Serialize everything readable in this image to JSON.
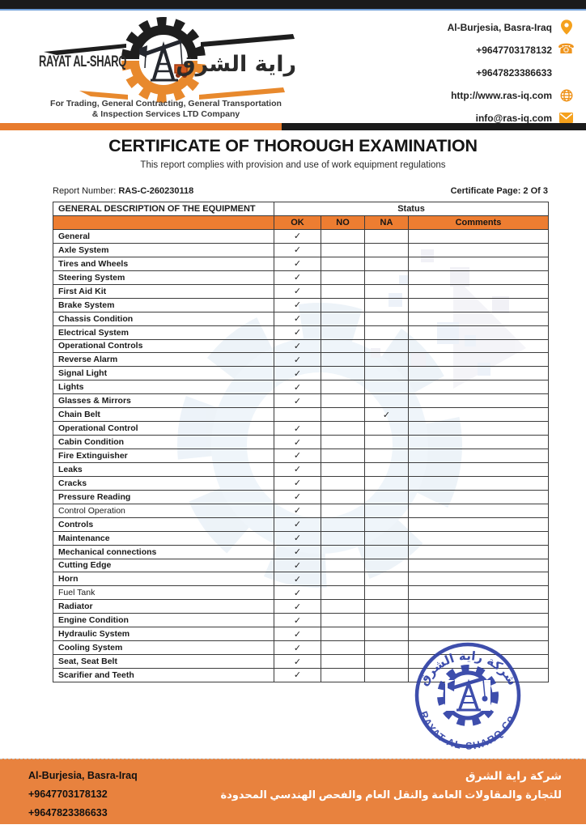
{
  "header": {
    "company_name_en": "RAYAT AL-SHARQ",
    "company_name_ar": "راية الشرق",
    "tagline_line1": "For Trading, General Contracting, General Transportation",
    "tagline_line2": "& Inspection Services LTD Company",
    "contact": {
      "address": "Al-Burjesia, Basra-Iraq",
      "phone1": "+9647703178132",
      "phone2": "+9647823386633",
      "website": "http://www.ras-iq.com",
      "email": "info@ras-iq.com"
    }
  },
  "title": "CERTIFICATE OF THOROUGH EXAMINATION",
  "subtitle": "This report complies with provision and use of work equipment regulations",
  "report": {
    "number_label": "Report Number: ",
    "number_value": "RAS-C-260230118",
    "page_label": "Certificate Page: 2 Of 3"
  },
  "table": {
    "col1_header": "GENERAL DESCRIPTION OF THE EQUIPMENT",
    "status_header": "Status",
    "status_columns": [
      "OK",
      "NO",
      "NA",
      "Comments"
    ],
    "check_glyph": "✓",
    "rows": [
      {
        "label": "General",
        "status": "OK",
        "bold": true
      },
      {
        "label": "Axle System",
        "status": "OK",
        "bold": true
      },
      {
        "label": "Tires and Wheels",
        "status": "OK",
        "bold": true
      },
      {
        "label": "Steering System",
        "status": "OK",
        "bold": true
      },
      {
        "label": "First Aid Kit",
        "status": "OK",
        "bold": true
      },
      {
        "label": "Brake System",
        "status": "OK",
        "bold": true
      },
      {
        "label": "Chassis Condition",
        "status": "OK",
        "bold": true
      },
      {
        "label": "Electrical System",
        "status": "OK",
        "bold": true
      },
      {
        "label": "Operational Controls",
        "status": "OK",
        "bold": true
      },
      {
        "label": "Reverse Alarm",
        "status": "OK",
        "bold": true
      },
      {
        "label": "Signal Light",
        "status": "OK",
        "bold": true
      },
      {
        "label": "Lights",
        "status": "OK",
        "bold": true
      },
      {
        "label": "Glasses & Mirrors",
        "status": "OK",
        "bold": true
      },
      {
        "label": "Chain Belt",
        "status": "NA",
        "bold": true
      },
      {
        "label": "Operational Control",
        "status": "OK",
        "bold": true
      },
      {
        "label": "Cabin Condition",
        "status": "OK",
        "bold": true
      },
      {
        "label": "Fire Extinguisher",
        "status": "OK",
        "bold": true
      },
      {
        "label": "Leaks",
        "status": "OK",
        "bold": true
      },
      {
        "label": "Cracks",
        "status": "OK",
        "bold": true
      },
      {
        "label": "Pressure Reading",
        "status": "OK",
        "bold": true
      },
      {
        "label": "Control Operation",
        "status": "OK",
        "bold": false
      },
      {
        "label": "Controls",
        "status": "OK",
        "bold": true
      },
      {
        "label": "Maintenance",
        "status": "OK",
        "bold": true
      },
      {
        "label": "Mechanical connections",
        "status": "OK",
        "bold": true
      },
      {
        "label": "Cutting Edge",
        "status": "OK",
        "bold": true
      },
      {
        "label": "Horn",
        "status": "OK",
        "bold": true
      },
      {
        "label": "Fuel Tank",
        "status": "OK",
        "bold": false
      },
      {
        "label": "Radiator",
        "status": "OK",
        "bold": true
      },
      {
        "label": "Engine Condition",
        "status": "OK",
        "bold": true
      },
      {
        "label": "Hydraulic System",
        "status": "OK",
        "bold": true
      },
      {
        "label": "Cooling System",
        "status": "OK",
        "bold": true
      },
      {
        "label": "Seat, Seat Belt",
        "status": "OK",
        "bold": true
      },
      {
        "label": "Scarifier and Teeth",
        "status": "OK",
        "bold": true
      }
    ]
  },
  "stamp": {
    "top_text_ar": "شركة راية الشرق",
    "bottom_text": "RAYAT AL-SHARQ Co."
  },
  "footer": {
    "address": "Al-Burjesia, Basra-Iraq",
    "phone1": "+9647703178132",
    "phone2": "+9647823386633",
    "company_ar_line1": "شركة راية الشرق",
    "company_ar_line2": "للتجارة والمقاولات العامة والنقل العام والفحص الهندسي المحدودة"
  },
  "colors": {
    "accent_orange": "#ed7d31",
    "footer_orange": "#e8823e",
    "icon_orange": "#ef941c",
    "stamp_blue": "#2e3fa5",
    "bar_black": "#1b1b1b"
  }
}
